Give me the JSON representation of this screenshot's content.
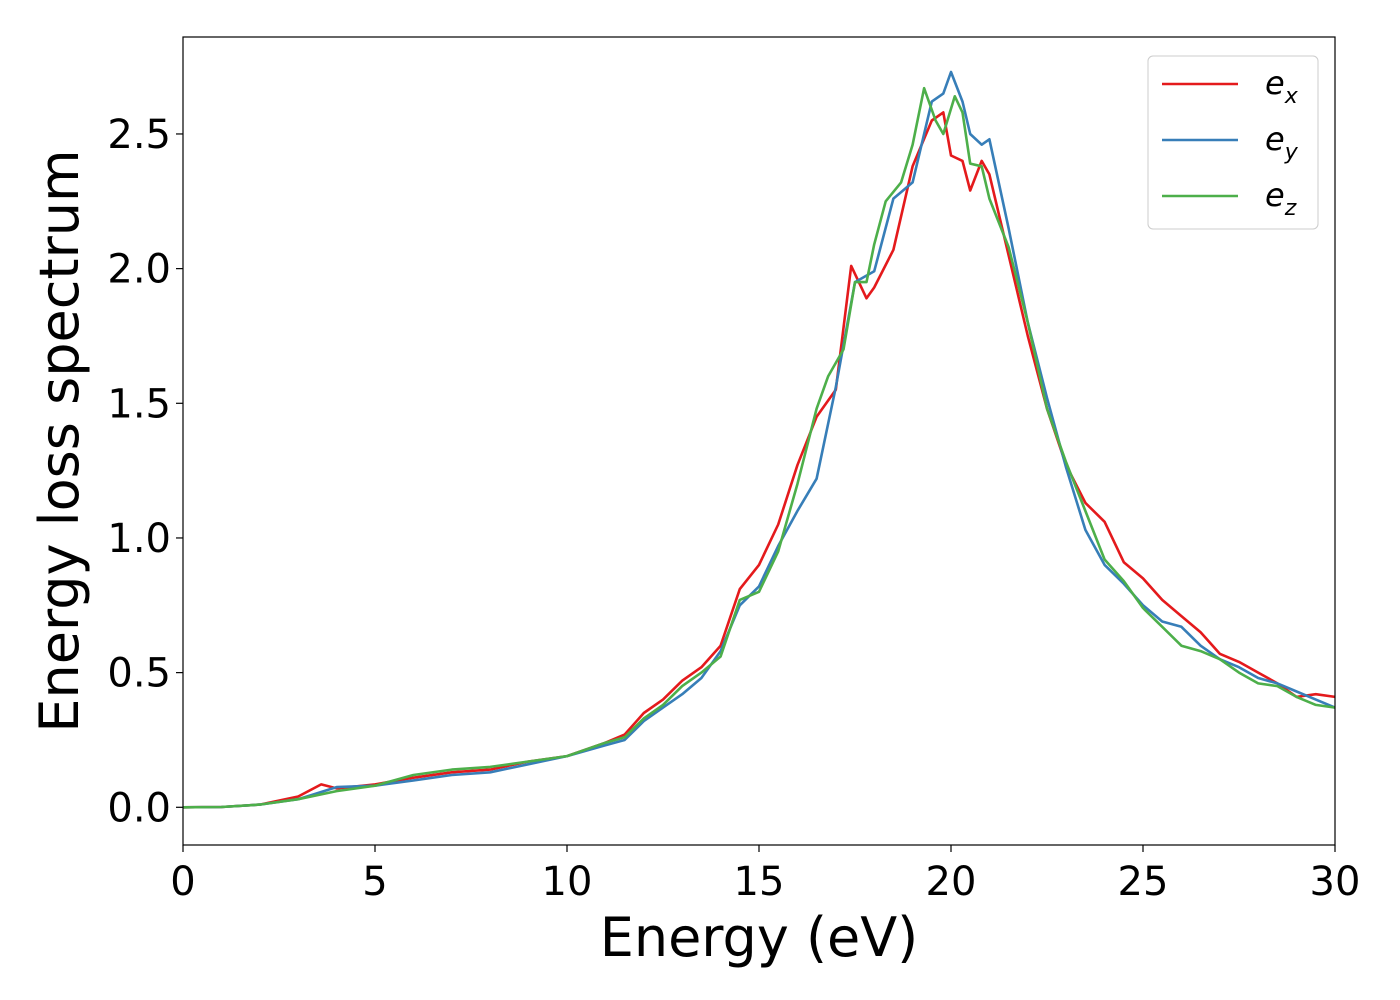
{
  "chart_data": {
    "type": "line",
    "title": "",
    "xlabel": "Energy (eV)",
    "ylabel": "Energy loss spectrum",
    "xlim": [
      0,
      30
    ],
    "ylim": [
      -0.14,
      2.86
    ],
    "xticks": [
      0,
      5,
      10,
      15,
      20,
      25,
      30
    ],
    "xtick_labels": [
      "0",
      "5",
      "10",
      "15",
      "20",
      "25",
      "30"
    ],
    "yticks": [
      0.0,
      0.5,
      1.0,
      1.5,
      2.0,
      2.5
    ],
    "ytick_labels": [
      "0.0",
      "0.5",
      "1.0",
      "1.5",
      "2.0",
      "2.5"
    ],
    "grid": false,
    "legend_position": "top-right",
    "series": [
      {
        "name": "e_x",
        "legend_base": "e",
        "legend_sub": "x",
        "color": "#e41a1c",
        "points": [
          [
            0,
            0
          ],
          [
            1,
            0.001
          ],
          [
            2,
            0.01
          ],
          [
            3,
            0.04
          ],
          [
            3.6,
            0.085
          ],
          [
            4,
            0.07
          ],
          [
            5,
            0.085
          ],
          [
            6,
            0.11
          ],
          [
            7,
            0.13
          ],
          [
            8,
            0.14
          ],
          [
            9,
            0.17
          ],
          [
            10,
            0.19
          ],
          [
            11,
            0.24
          ],
          [
            11.5,
            0.27
          ],
          [
            12,
            0.35
          ],
          [
            12.5,
            0.4
          ],
          [
            13,
            0.47
          ],
          [
            13.5,
            0.52
          ],
          [
            14,
            0.6
          ],
          [
            14.5,
            0.81
          ],
          [
            15,
            0.9
          ],
          [
            15.5,
            1.05
          ],
          [
            16,
            1.27
          ],
          [
            16.5,
            1.45
          ],
          [
            17,
            1.55
          ],
          [
            17.4,
            2.01
          ],
          [
            17.8,
            1.89
          ],
          [
            18,
            1.93
          ],
          [
            18.5,
            2.07
          ],
          [
            19,
            2.38
          ],
          [
            19.5,
            2.55
          ],
          [
            19.8,
            2.58
          ],
          [
            20,
            2.42
          ],
          [
            20.3,
            2.4
          ],
          [
            20.5,
            2.29
          ],
          [
            20.8,
            2.4
          ],
          [
            21,
            2.35
          ],
          [
            21.5,
            2.05
          ],
          [
            22,
            1.75
          ],
          [
            22.5,
            1.48
          ],
          [
            23,
            1.27
          ],
          [
            23.5,
            1.13
          ],
          [
            24,
            1.06
          ],
          [
            24.5,
            0.91
          ],
          [
            25,
            0.85
          ],
          [
            25.5,
            0.77
          ],
          [
            26,
            0.71
          ],
          [
            26.5,
            0.65
          ],
          [
            27,
            0.57
          ],
          [
            27.5,
            0.54
          ],
          [
            28,
            0.5
          ],
          [
            28.5,
            0.46
          ],
          [
            29,
            0.41
          ],
          [
            29.5,
            0.42
          ],
          [
            30,
            0.41
          ]
        ]
      },
      {
        "name": "e_y",
        "legend_base": "e",
        "legend_sub": "y",
        "color": "#377eb8",
        "points": [
          [
            0,
            0
          ],
          [
            1,
            0.001
          ],
          [
            2,
            0.01
          ],
          [
            3,
            0.03
          ],
          [
            4,
            0.075
          ],
          [
            5,
            0.08
          ],
          [
            6,
            0.1
          ],
          [
            7,
            0.12
          ],
          [
            8,
            0.13
          ],
          [
            9,
            0.16
          ],
          [
            10,
            0.19
          ],
          [
            11,
            0.23
          ],
          [
            11.5,
            0.25
          ],
          [
            12,
            0.32
          ],
          [
            12.5,
            0.37
          ],
          [
            13,
            0.42
          ],
          [
            13.5,
            0.48
          ],
          [
            14,
            0.58
          ],
          [
            14.5,
            0.75
          ],
          [
            15,
            0.82
          ],
          [
            15.5,
            0.97
          ],
          [
            16,
            1.1
          ],
          [
            16.5,
            1.22
          ],
          [
            17,
            1.56
          ],
          [
            17.5,
            1.95
          ],
          [
            18,
            1.99
          ],
          [
            18.5,
            2.26
          ],
          [
            19,
            2.32
          ],
          [
            19.5,
            2.62
          ],
          [
            19.8,
            2.65
          ],
          [
            20,
            2.73
          ],
          [
            20.3,
            2.62
          ],
          [
            20.5,
            2.5
          ],
          [
            20.8,
            2.46
          ],
          [
            21,
            2.48
          ],
          [
            21.5,
            2.15
          ],
          [
            22,
            1.8
          ],
          [
            22.5,
            1.52
          ],
          [
            23,
            1.26
          ],
          [
            23.5,
            1.03
          ],
          [
            24,
            0.9
          ],
          [
            24.5,
            0.83
          ],
          [
            25,
            0.75
          ],
          [
            25.5,
            0.69
          ],
          [
            26,
            0.67
          ],
          [
            26.5,
            0.6
          ],
          [
            27,
            0.55
          ],
          [
            27.5,
            0.52
          ],
          [
            28,
            0.48
          ],
          [
            28.5,
            0.46
          ],
          [
            29,
            0.43
          ],
          [
            29.5,
            0.4
          ],
          [
            30,
            0.37
          ]
        ]
      },
      {
        "name": "e_z",
        "legend_base": "e",
        "legend_sub": "z",
        "color": "#4daf4a",
        "points": [
          [
            0,
            0
          ],
          [
            1,
            0.001
          ],
          [
            2,
            0.01
          ],
          [
            3,
            0.03
          ],
          [
            4,
            0.06
          ],
          [
            5,
            0.08
          ],
          [
            6,
            0.12
          ],
          [
            7,
            0.14
          ],
          [
            8,
            0.15
          ],
          [
            9,
            0.17
          ],
          [
            10,
            0.19
          ],
          [
            11,
            0.24
          ],
          [
            11.5,
            0.26
          ],
          [
            12,
            0.33
          ],
          [
            12.5,
            0.38
          ],
          [
            13,
            0.45
          ],
          [
            13.5,
            0.5
          ],
          [
            14,
            0.56
          ],
          [
            14.5,
            0.77
          ],
          [
            15,
            0.8
          ],
          [
            15.5,
            0.95
          ],
          [
            16,
            1.2
          ],
          [
            16.5,
            1.48
          ],
          [
            16.8,
            1.6
          ],
          [
            17.2,
            1.7
          ],
          [
            17.5,
            1.95
          ],
          [
            17.8,
            1.95
          ],
          [
            18,
            2.09
          ],
          [
            18.3,
            2.25
          ],
          [
            18.7,
            2.32
          ],
          [
            19,
            2.46
          ],
          [
            19.3,
            2.67
          ],
          [
            19.6,
            2.55
          ],
          [
            19.8,
            2.5
          ],
          [
            20.1,
            2.64
          ],
          [
            20.3,
            2.58
          ],
          [
            20.5,
            2.39
          ],
          [
            20.8,
            2.38
          ],
          [
            21,
            2.26
          ],
          [
            21.5,
            2.08
          ],
          [
            22,
            1.8
          ],
          [
            22.5,
            1.48
          ],
          [
            23,
            1.28
          ],
          [
            23.5,
            1.1
          ],
          [
            24,
            0.92
          ],
          [
            24.5,
            0.84
          ],
          [
            25,
            0.74
          ],
          [
            25.5,
            0.67
          ],
          [
            26,
            0.6
          ],
          [
            26.5,
            0.58
          ],
          [
            27,
            0.55
          ],
          [
            27.5,
            0.5
          ],
          [
            28,
            0.46
          ],
          [
            28.5,
            0.45
          ],
          [
            29,
            0.41
          ],
          [
            29.5,
            0.38
          ],
          [
            30,
            0.37
          ]
        ]
      }
    ]
  }
}
